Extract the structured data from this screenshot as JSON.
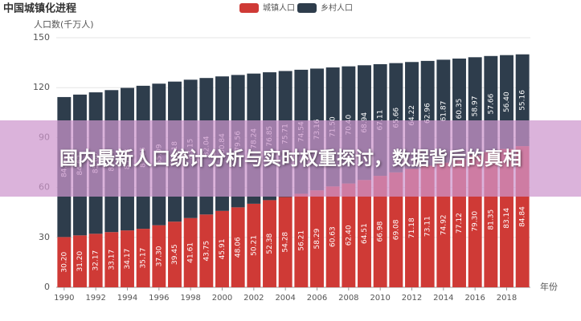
{
  "chart_data": {
    "type": "stacked-bar",
    "title": "中国城镇化进程",
    "y_label": "人口数(千万人)",
    "x_label": "年份",
    "categories": [
      "1990",
      null,
      "1992",
      null,
      "1994",
      null,
      "1996",
      null,
      "1998",
      null,
      "2000",
      null,
      "2002",
      null,
      "2004",
      null,
      "2006",
      null,
      "2008",
      null,
      "2010",
      null,
      "2012",
      null,
      "2014",
      null,
      "2016",
      null,
      "2018",
      null
    ],
    "series": [
      {
        "name": "城镇人口",
        "color": "#cf3a36",
        "values": [
          30.2,
          31.2,
          32.17,
          33.17,
          34.17,
          35.17,
          37.3,
          39.45,
          41.61,
          43.75,
          45.91,
          48.06,
          50.21,
          52.38,
          54.28,
          56.21,
          58.29,
          60.63,
          62.4,
          64.51,
          66.98,
          69.08,
          71.18,
          73.11,
          74.92,
          77.12,
          79.3,
          81.35,
          83.14,
          84.84
        ],
        "value_labels": [
          "30.20",
          "31.20",
          "32.17",
          "33.17",
          "34.17",
          "35.17",
          "37.30",
          "39.45",
          "41.61",
          "43.75",
          "45.91",
          "48.06",
          "50.21",
          "52.38",
          "54.28",
          "56.21",
          "58.29",
          "60.63",
          "62.40",
          "64.51",
          "66.98",
          "69.08",
          "71.18",
          "73.11",
          "74.92",
          "77.12",
          "79.30",
          "81.35",
          "83.14",
          "84.84"
        ]
      },
      {
        "name": "乡村人口",
        "color": "#2e3d4c",
        "values": [
          84.14,
          84.62,
          85.0,
          85.34,
          85.68,
          85.95,
          85.09,
          84.18,
          83.15,
          82.04,
          80.84,
          79.56,
          78.24,
          76.85,
          75.71,
          74.54,
          73.16,
          71.5,
          70.4,
          68.94,
          67.11,
          65.66,
          64.22,
          62.96,
          61.87,
          60.35,
          58.97,
          57.66,
          56.4,
          55.16
        ],
        "value_labels": [
          "84.14",
          "84.62",
          "85.00",
          "85.34",
          "85.68",
          "85.95",
          "85.09",
          "84.18",
          "83.15",
          "82.04",
          "80.84",
          "79.56",
          "78.24",
          "76.85",
          "75.71",
          "74.54",
          "73.16",
          "71.50",
          "70.40",
          "68.94",
          "67.11",
          "65.66",
          "64.22",
          "62.96",
          "61.87",
          "60.35",
          "58.97",
          "57.66",
          "56.40",
          "55.16"
        ]
      }
    ],
    "ylim": [
      0,
      150
    ],
    "yticks": [
      0,
      30,
      60,
      90,
      120,
      150
    ],
    "grid": true
  },
  "banner": {
    "text": "国内最新人口统计分析与实时权重探讨，数据背后的真相"
  }
}
